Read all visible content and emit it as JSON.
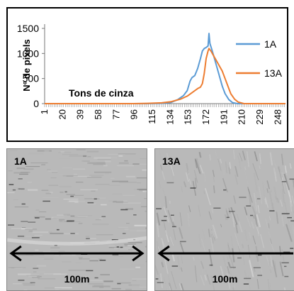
{
  "chart_data": {
    "type": "line",
    "ylabel": "Nº de pixels",
    "xlabel": "Tons de cinza",
    "ylim": [
      0,
      1500
    ],
    "yticks": [
      0,
      500,
      1000,
      1500
    ],
    "xlim": [
      1,
      256
    ],
    "xticks": [
      1,
      20,
      39,
      58,
      77,
      96,
      115,
      134,
      153,
      172,
      191,
      210,
      229,
      248
    ],
    "legend_position": "right",
    "series": [
      {
        "name": "1A",
        "color": "#5b9bd5",
        "points": [
          [
            1,
            0
          ],
          [
            110,
            0
          ],
          [
            125,
            5
          ],
          [
            135,
            25
          ],
          [
            142,
            80
          ],
          [
            148,
            160
          ],
          [
            152,
            260
          ],
          [
            155,
            450
          ],
          [
            157,
            520
          ],
          [
            160,
            560
          ],
          [
            163,
            700
          ],
          [
            166,
            900
          ],
          [
            168,
            1050
          ],
          [
            170,
            1100
          ],
          [
            172,
            1120
          ],
          [
            174,
            1150
          ],
          [
            175,
            1400
          ],
          [
            176,
            1200
          ],
          [
            178,
            1080
          ],
          [
            180,
            950
          ],
          [
            183,
            750
          ],
          [
            186,
            550
          ],
          [
            189,
            350
          ],
          [
            192,
            200
          ],
          [
            196,
            80
          ],
          [
            200,
            20
          ],
          [
            205,
            0
          ],
          [
            256,
            0
          ]
        ]
      },
      {
        "name": "13A",
        "color": "#ed7d31",
        "points": [
          [
            1,
            0
          ],
          [
            95,
            0
          ],
          [
            110,
            5
          ],
          [
            125,
            15
          ],
          [
            135,
            40
          ],
          [
            145,
            90
          ],
          [
            152,
            150
          ],
          [
            158,
            230
          ],
          [
            163,
            300
          ],
          [
            166,
            330
          ],
          [
            168,
            400
          ],
          [
            170,
            600
          ],
          [
            172,
            900
          ],
          [
            174,
            1050
          ],
          [
            175,
            1100
          ],
          [
            177,
            1050
          ],
          [
            180,
            950
          ],
          [
            183,
            850
          ],
          [
            186,
            750
          ],
          [
            189,
            650
          ],
          [
            192,
            500
          ],
          [
            195,
            350
          ],
          [
            198,
            200
          ],
          [
            202,
            90
          ],
          [
            206,
            30
          ],
          [
            212,
            0
          ],
          [
            256,
            0
          ]
        ]
      }
    ]
  },
  "panels": [
    {
      "label": "1A",
      "scale": "100m"
    },
    {
      "label": "13A",
      "scale": "100m"
    }
  ]
}
